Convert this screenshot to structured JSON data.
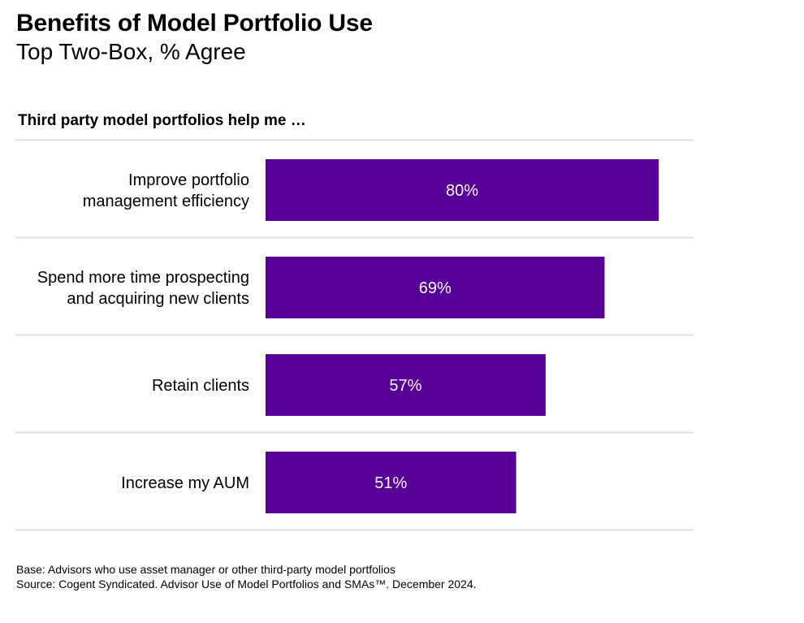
{
  "header": {
    "title": "Benefits of Model Portfolio Use",
    "subtitle": "Top Two-Box, % Agree"
  },
  "chart_heading": "Third party model portfolios help me …",
  "chart_data": {
    "type": "bar",
    "orientation": "horizontal",
    "categories": [
      [
        "Improve portfolio",
        "management efficiency"
      ],
      [
        "Spend more time prospecting",
        "and acquiring new clients"
      ],
      [
        "Retain clients"
      ],
      [
        "Increase my AUM"
      ]
    ],
    "values": [
      80,
      69,
      57,
      51
    ],
    "value_labels": [
      "80%",
      "69%",
      "57%",
      "51%"
    ],
    "unit": "%",
    "xlim": [
      0,
      100
    ],
    "grid": false,
    "legend": "none",
    "bar_color": "#560097",
    "label_color": "#ffffff",
    "separator_color": "#d9d9d9"
  },
  "footnotes": {
    "base": "Base: Advisors who use asset manager or other third-party model portfolios",
    "source": "Source: Cogent Syndicated. Advisor Use of Model Portfolios and SMAs™. December 2024."
  }
}
